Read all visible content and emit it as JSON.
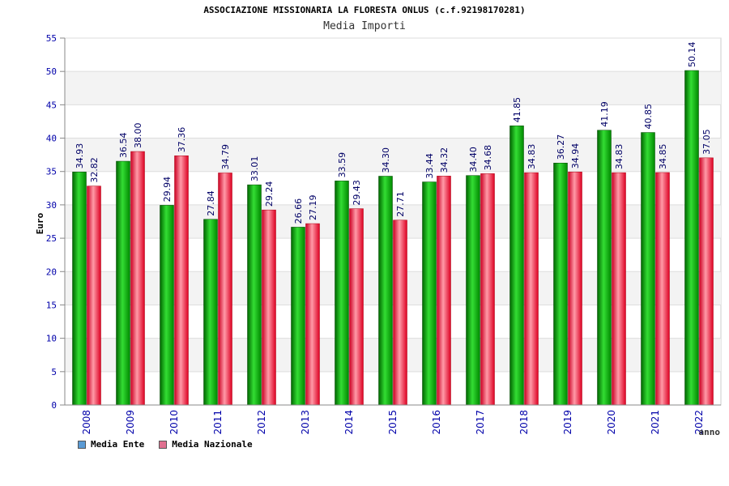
{
  "chart_data": {
    "type": "bar",
    "title": "ASSOCIAZIONE MISSIONARIA LA FLORESTA ONLUS (c.f.92198170281)",
    "subtitle": "Media Importi",
    "xlabel": "anno",
    "ylabel": "Euro",
    "ylim": [
      0,
      55
    ],
    "yticks": [
      0,
      5,
      10,
      15,
      20,
      25,
      30,
      35,
      40,
      45,
      50,
      55
    ],
    "grid": true,
    "legend_position": "bottom-left",
    "categories": [
      "2008",
      "2009",
      "2010",
      "2011",
      "2012",
      "2013",
      "2014",
      "2015",
      "2016",
      "2017",
      "2018",
      "2019",
      "2020",
      "2021",
      "2022"
    ],
    "series": [
      {
        "name": "Media Ente",
        "color": "#00aa00",
        "legend_color": "#5b9bd5",
        "values": [
          34.93,
          36.54,
          29.94,
          27.84,
          33.01,
          26.66,
          33.59,
          34.3,
          33.44,
          34.4,
          41.85,
          36.27,
          41.19,
          40.85,
          50.14
        ],
        "labels": [
          "34.93",
          "36.54",
          "29.94",
          "27.84",
          "33.01",
          "26.66",
          "33.59",
          "34.30",
          "33.44",
          "34.40",
          "41.85",
          "36.27",
          "41.19",
          "40.85",
          "50.14"
        ]
      },
      {
        "name": "Media Nazionale",
        "color": "#e8002a",
        "legend_color": "#e07090",
        "values": [
          32.82,
          38.0,
          37.36,
          34.79,
          29.24,
          27.19,
          29.43,
          27.71,
          34.32,
          34.68,
          34.83,
          34.94,
          34.83,
          34.85,
          37.05
        ],
        "labels": [
          "32.82",
          "38.00",
          "37.36",
          "34.79",
          "29.24",
          "27.19",
          "29.43",
          "27.71",
          "34.32",
          "34.68",
          "34.83",
          "34.94",
          "34.83",
          "34.85",
          "37.05"
        ]
      }
    ]
  }
}
